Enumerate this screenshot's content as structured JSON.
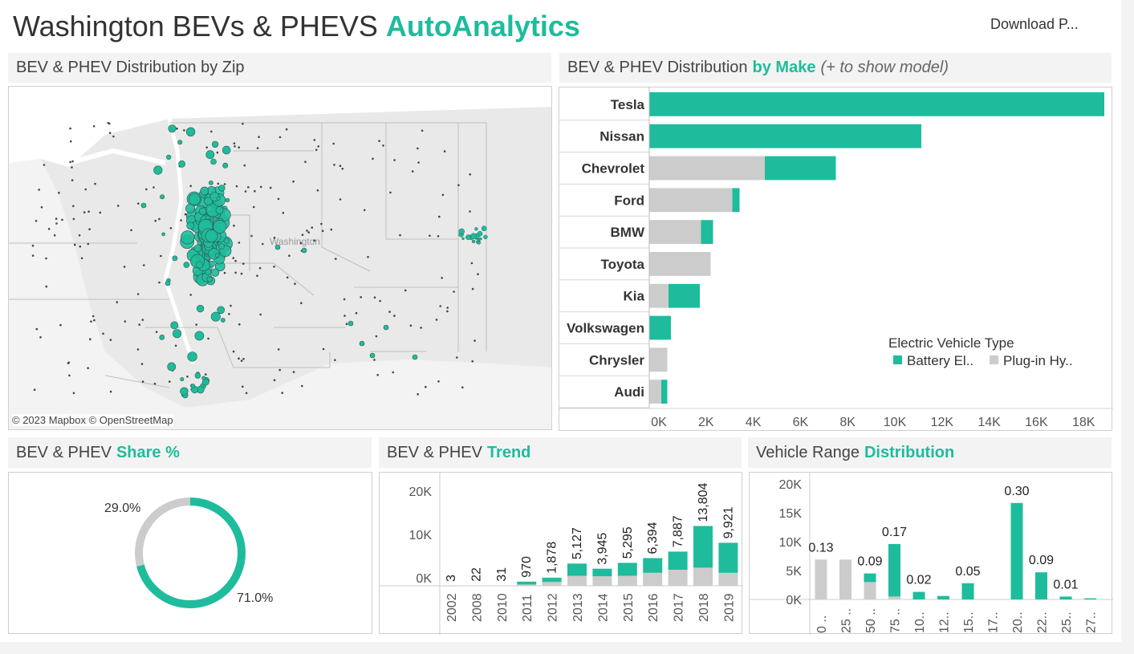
{
  "header": {
    "title": "Washington BEVs & PHEVS",
    "brand": "AutoAnalytics",
    "download_label": "Download P..."
  },
  "colors": {
    "bev": "#1ebc9c",
    "phev": "#cccccc",
    "accent": "#1ebc9c"
  },
  "map_panel": {
    "title": "BEV & PHEV Distribution by Zip",
    "state_label": "Washington",
    "attribution": "© 2023 Mapbox © OpenStreetMap"
  },
  "make_panel": {
    "title": "BEV & PHEV Distribution",
    "highlight": "by Make",
    "hint": "(+ to show model)"
  },
  "share_panel": {
    "title": "BEV & PHEV",
    "highlight": "Share %"
  },
  "trend_panel": {
    "title": "BEV & PHEV",
    "highlight": "Trend"
  },
  "range_panel": {
    "title": "Vehicle Range",
    "highlight": "Distribution"
  },
  "chart_data": [
    {
      "type": "bar",
      "orientation": "horizontal",
      "stacked": true,
      "categories": [
        "Tesla",
        "Nissan",
        "Chevrolet",
        "Ford",
        "BMW",
        "Toyota",
        "Kia",
        "Volkswagen",
        "Chrysler",
        "Audi"
      ],
      "series": [
        {
          "name": "Plug-in Hy..",
          "values": [
            0,
            0,
            4800,
            3450,
            2150,
            2550,
            800,
            0,
            750,
            500
          ]
        },
        {
          "name": "Battery El..",
          "values": [
            18900,
            11300,
            2950,
            300,
            500,
            0,
            1300,
            900,
            0,
            250
          ]
        }
      ],
      "x_ticks": [
        "0K",
        "2K",
        "4K",
        "6K",
        "8K",
        "10K",
        "12K",
        "14K",
        "16K",
        "18K"
      ],
      "xlim": [
        0,
        19000
      ],
      "legend": {
        "title": "Electric Vehicle Type",
        "position": "bottom-right"
      }
    },
    {
      "type": "pie",
      "donut": true,
      "slices": [
        {
          "name": "Battery El..",
          "value": 71.0,
          "label": "71.0%"
        },
        {
          "name": "Plug-in Hy..",
          "value": 29.0,
          "label": "29.0%"
        }
      ]
    },
    {
      "type": "bar",
      "stacked": true,
      "categories": [
        "2002",
        "2008",
        "2010",
        "2011",
        "2012",
        "2013",
        "2014",
        "2015",
        "2016",
        "2017",
        "2018",
        "2019"
      ],
      "series": [
        {
          "name": "Plug-in Hy..",
          "values": [
            3,
            22,
            31,
            300,
            900,
            2300,
            2200,
            2300,
            3000,
            3700,
            4200,
            3000
          ]
        },
        {
          "name": "Battery El..",
          "values": [
            0,
            0,
            0,
            670,
            978,
            2827,
            1745,
            2995,
            3394,
            4187,
            9604,
            6921
          ]
        }
      ],
      "totals": [
        "3",
        "22",
        "31",
        "970",
        "1,878",
        "5,127",
        "3,945",
        "5,295",
        "6,394",
        "7,887",
        "13,804",
        "9,921"
      ],
      "y_ticks": [
        "0K",
        "10K",
        "20K"
      ],
      "ylim": [
        0,
        24000
      ]
    },
    {
      "type": "bar",
      "stacked": true,
      "categories": [
        "0 ..",
        "25 ..",
        "50 ..",
        "75 ..",
        "10..",
        "12..",
        "15..",
        "17..",
        "20..",
        "22..",
        "25..",
        "27.."
      ],
      "series": [
        {
          "name": "Plug-in Hy..",
          "values": [
            6900,
            6900,
            3000,
            500,
            0,
            0,
            0,
            0,
            0,
            0,
            0,
            0
          ]
        },
        {
          "name": "Battery El..",
          "values": [
            0,
            0,
            1500,
            9100,
            1300,
            600,
            2800,
            0,
            16700,
            4700,
            500,
            200
          ]
        }
      ],
      "bev_share_labels": [
        "0.13",
        "",
        "0.09",
        "0.17",
        "0.02",
        "",
        "0.05",
        "",
        "0.30",
        "0.09",
        "0.01",
        ""
      ],
      "y_ticks": [
        "0K",
        "5K",
        "10K",
        "15K",
        "20K"
      ],
      "ylim": [
        0,
        20000
      ]
    }
  ]
}
